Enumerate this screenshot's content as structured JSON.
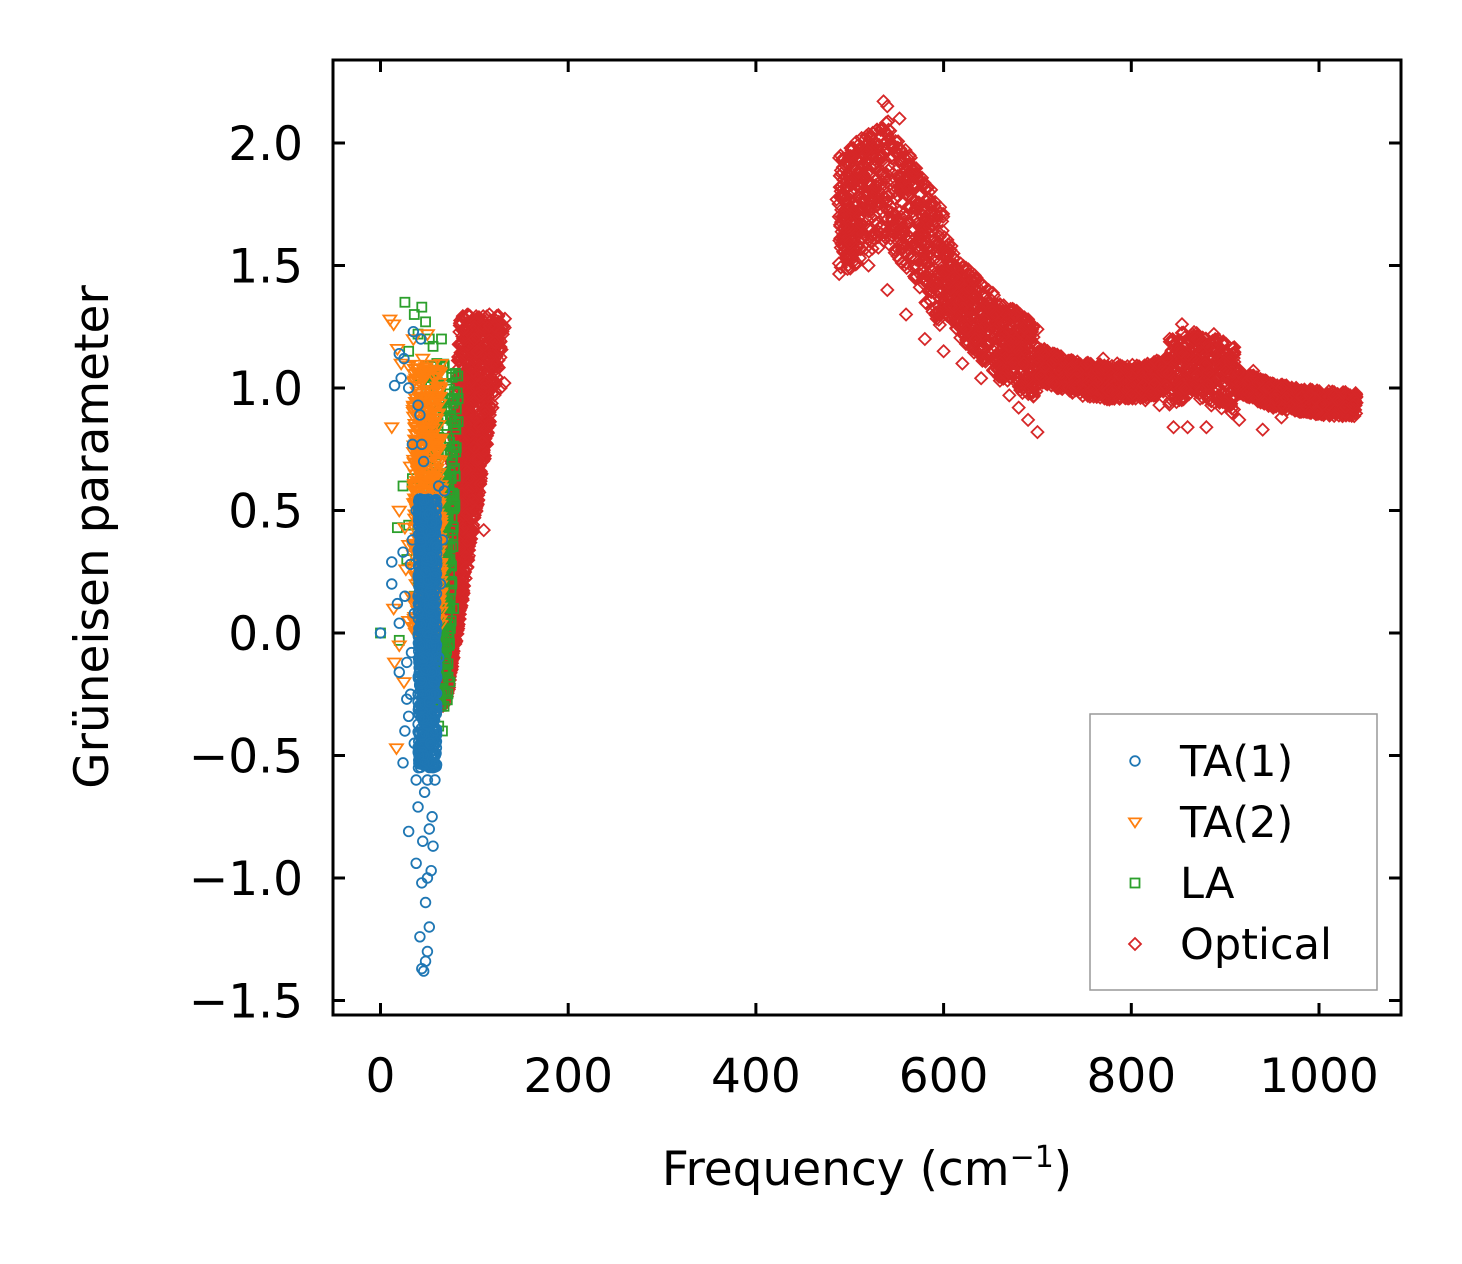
{
  "chart_data": {
    "type": "scatter",
    "title": "",
    "xlabel": "Frequency (cm",
    "xlabel_sup": "−1",
    "xlabel_suffix": ")",
    "ylabel": "Grüneisen parameter",
    "xlim": [
      -50,
      1090
    ],
    "ylim": [
      -1.55,
      2.35
    ],
    "xticks": [
      0,
      200,
      400,
      600,
      800,
      1000
    ],
    "xtick_labels": [
      "0",
      "200",
      "400",
      "600",
      "800",
      "1000"
    ],
    "yticks": [
      -1.5,
      -1.0,
      -0.5,
      0.0,
      0.5,
      1.0,
      1.5,
      2.0
    ],
    "ytick_labels": [
      "−1.5",
      "−1.0",
      "−0.5",
      "0.0",
      "0.5",
      "1.0",
      "1.5",
      "2.0"
    ],
    "grid": false,
    "legend_position": "lower-right",
    "series": [
      {
        "name": "TA(1)",
        "marker": "circle",
        "color": "#1f77b4",
        "points": [
          [
            0,
            0.0
          ],
          [
            12,
            0.29
          ],
          [
            12,
            0.2
          ],
          [
            15,
            1.01
          ],
          [
            18,
            0.12
          ],
          [
            20,
            1.14
          ],
          [
            22,
            1.04
          ],
          [
            24,
            0.33
          ],
          [
            26,
            0.15
          ],
          [
            28,
            -0.12
          ],
          [
            20,
            -0.16
          ],
          [
            30,
            -0.34
          ],
          [
            32,
            -0.25
          ],
          [
            26,
            -0.4
          ],
          [
            30,
            1.0
          ],
          [
            32,
            0.28
          ],
          [
            34,
            0.38
          ],
          [
            36,
            -0.45
          ],
          [
            38,
            -0.6
          ],
          [
            30,
            -0.81
          ],
          [
            38,
            -0.94
          ],
          [
            40,
            -0.71
          ],
          [
            42,
            -1.24
          ],
          [
            44,
            -1.37
          ],
          [
            46,
            -1.38
          ],
          [
            48,
            -1.34
          ],
          [
            50,
            -1.3
          ],
          [
            52,
            -1.2
          ],
          [
            48,
            -1.1
          ],
          [
            50,
            -1.0
          ],
          [
            54,
            -0.97
          ],
          [
            56,
            -0.87
          ],
          [
            52,
            -0.8
          ],
          [
            55,
            -0.75
          ],
          [
            58,
            -0.6
          ],
          [
            56,
            -0.5
          ],
          [
            60,
            -0.3
          ],
          [
            62,
            -0.1
          ],
          [
            58,
            0.05
          ],
          [
            64,
            0.2
          ],
          [
            66,
            0.38
          ],
          [
            60,
            0.52
          ],
          [
            62,
            0.6
          ],
          [
            68,
            0.58
          ],
          [
            40,
            0.93
          ],
          [
            42,
            0.89
          ],
          [
            44,
            0.77
          ],
          [
            46,
            0.7
          ],
          [
            34,
            0.77
          ],
          [
            38,
            0.5
          ],
          [
            40,
            0.15
          ],
          [
            42,
            -0.05
          ],
          [
            44,
            -0.2
          ],
          [
            46,
            -0.35
          ],
          [
            48,
            -0.15
          ],
          [
            50,
            0.0
          ],
          [
            52,
            0.1
          ],
          [
            54,
            -0.05
          ],
          [
            56,
            0.12
          ],
          [
            50,
            -0.6
          ],
          [
            45,
            -0.85
          ],
          [
            44,
            -1.02
          ],
          [
            47,
            -0.65
          ],
          [
            53,
            -0.45
          ],
          [
            57,
            -0.25
          ],
          [
            60,
            0.35
          ],
          [
            48,
            0.25
          ],
          [
            36,
            0.08
          ],
          [
            41,
            -0.5
          ],
          [
            55,
            0.45
          ],
          [
            35,
            1.23
          ],
          [
            43,
            1.2
          ],
          [
            25,
            1.12
          ],
          [
            20,
            0.04
          ],
          [
            28,
            -0.27
          ],
          [
            24,
            -0.53
          ],
          [
            33,
            -0.08
          ],
          [
            46,
            -0.1
          ],
          [
            52,
            -0.28
          ],
          [
            58,
            -0.02
          ]
        ]
      },
      {
        "name": "TA(2)",
        "marker": "triangle-down",
        "color": "#ff7f0e",
        "points": [
          [
            10,
            1.28
          ],
          [
            14,
            1.26
          ],
          [
            18,
            1.16
          ],
          [
            22,
            1.1
          ],
          [
            12,
            0.84
          ],
          [
            20,
            0.5
          ],
          [
            26,
            0.43
          ],
          [
            30,
            0.36
          ],
          [
            14,
            0.1
          ],
          [
            20,
            -0.05
          ],
          [
            15,
            -0.12
          ],
          [
            25,
            -0.2
          ],
          [
            17,
            -0.47
          ],
          [
            30,
            0.05
          ],
          [
            34,
            0.27
          ],
          [
            36,
            0.58
          ],
          [
            32,
            0.68
          ],
          [
            38,
            0.77
          ],
          [
            40,
            0.83
          ],
          [
            42,
            0.94
          ],
          [
            44,
            1.03
          ],
          [
            46,
            0.8
          ],
          [
            48,
            0.9
          ],
          [
            50,
            0.98
          ],
          [
            52,
            0.55
          ],
          [
            54,
            0.48
          ],
          [
            56,
            0.4
          ],
          [
            58,
            0.3
          ],
          [
            40,
            0.12
          ],
          [
            44,
            -0.04
          ],
          [
            46,
            -0.15
          ],
          [
            48,
            -0.3
          ],
          [
            52,
            0.23
          ],
          [
            55,
            0.6
          ],
          [
            60,
            0.7
          ],
          [
            62,
            0.52
          ],
          [
            64,
            0.45
          ],
          [
            30,
            1.09
          ],
          [
            35,
            1.2
          ],
          [
            45,
            1.12
          ],
          [
            50,
            1.22
          ],
          [
            38,
            0.2
          ],
          [
            42,
            0.35
          ],
          [
            33,
            0.15
          ],
          [
            27,
            0.26
          ],
          [
            57,
            0.15
          ],
          [
            61,
            0.36
          ],
          [
            49,
            -0.38
          ]
        ]
      },
      {
        "name": "LA",
        "marker": "square",
        "color": "#2ca02c",
        "points": [
          [
            0,
            0.0
          ],
          [
            20,
            -0.03
          ],
          [
            18,
            0.43
          ],
          [
            24,
            0.6
          ],
          [
            26,
            1.35
          ],
          [
            30,
            1.15
          ],
          [
            36,
            1.3
          ],
          [
            40,
            1.22
          ],
          [
            44,
            1.33
          ],
          [
            48,
            1.27
          ],
          [
            52,
            1.2
          ],
          [
            56,
            1.17
          ],
          [
            60,
            1.1
          ],
          [
            64,
            0.98
          ],
          [
            60,
            0.78
          ],
          [
            66,
            0.65
          ],
          [
            68,
            0.55
          ],
          [
            70,
            0.48
          ],
          [
            72,
            0.4
          ],
          [
            74,
            0.3
          ],
          [
            76,
            0.2
          ],
          [
            78,
            0.1
          ],
          [
            72,
            -0.18
          ],
          [
            74,
            -0.2
          ],
          [
            70,
            -0.05
          ],
          [
            66,
            -0.08
          ],
          [
            62,
            0.0
          ],
          [
            58,
            0.2
          ],
          [
            54,
            0.5
          ],
          [
            50,
            0.8
          ],
          [
            46,
            0.95
          ],
          [
            42,
            1.05
          ],
          [
            38,
            0.75
          ],
          [
            34,
            0.63
          ],
          [
            30,
            0.44
          ],
          [
            28,
            0.3
          ],
          [
            36,
            0.15
          ],
          [
            40,
            0.22
          ],
          [
            44,
            0.4
          ],
          [
            48,
            0.05
          ],
          [
            56,
            -0.25
          ],
          [
            62,
            -0.38
          ],
          [
            66,
            -0.4
          ],
          [
            68,
            0.32
          ],
          [
            71,
            0.73
          ],
          [
            65,
            1.2
          ],
          [
            58,
            1.05
          ]
        ]
      },
      {
        "name": "Optical",
        "marker": "diamond",
        "color": "#d62728",
        "regions": [
          {
            "x": [
              55,
              140
            ],
            "y": [
              -0.3,
              1.3
            ],
            "count": 1800
          },
          {
            "x": [
              488,
              1040
            ],
            "y": [
              0.82,
              2.18
            ],
            "count": 3200
          }
        ],
        "outline_points": [
          [
            116,
            1.3
          ],
          [
            122,
            1.25
          ],
          [
            100,
            1.2
          ],
          [
            88,
            1.24
          ],
          [
            132,
            1.02
          ],
          [
            128,
            1.0
          ],
          [
            110,
            0.42
          ],
          [
            102,
            0.5
          ],
          [
            66,
            0.2
          ],
          [
            62,
            -0.2
          ],
          [
            60,
            -0.3
          ],
          [
            536,
            2.17
          ],
          [
            540,
            2.15
          ],
          [
            553,
            2.1
          ],
          [
            545,
            1.98
          ],
          [
            565,
            1.94
          ],
          [
            574,
            1.85
          ],
          [
            588,
            1.72
          ],
          [
            588,
            1.67
          ],
          [
            604,
            1.55
          ],
          [
            610,
            1.45
          ],
          [
            622,
            1.38
          ],
          [
            633,
            1.37
          ],
          [
            650,
            1.32
          ],
          [
            667,
            1.3
          ],
          [
            690,
            1.28
          ],
          [
            700,
            1.24
          ],
          [
            720,
            1.12
          ],
          [
            735,
            1.08
          ],
          [
            752,
            1.1
          ],
          [
            770,
            1.12
          ],
          [
            785,
            1.1
          ],
          [
            800,
            1.05
          ],
          [
            818,
            1.09
          ],
          [
            838,
            1.12
          ],
          [
            854,
            1.26
          ],
          [
            870,
            1.2
          ],
          [
            888,
            1.22
          ],
          [
            898,
            1.19
          ],
          [
            908,
            1.16
          ],
          [
            930,
            1.07
          ],
          [
            960,
            1.0
          ],
          [
            990,
            0.97
          ],
          [
            1020,
            0.95
          ],
          [
            1040,
            0.94
          ],
          [
            1036,
            0.93
          ],
          [
            990,
            0.9
          ],
          [
            960,
            0.88
          ],
          [
            940,
            0.83
          ],
          [
            915,
            0.87
          ],
          [
            880,
            0.84
          ],
          [
            860,
            0.84
          ],
          [
            845,
            0.84
          ],
          [
            830,
            0.93
          ],
          [
            815,
            0.95
          ],
          [
            800,
            0.97
          ],
          [
            780,
            0.99
          ],
          [
            760,
            1.0
          ],
          [
            740,
            1.0
          ],
          [
            720,
            1.02
          ],
          [
            700,
            0.82
          ],
          [
            690,
            0.87
          ],
          [
            680,
            0.92
          ],
          [
            670,
            0.97
          ],
          [
            660,
            1.03
          ],
          [
            640,
            1.04
          ],
          [
            620,
            1.1
          ],
          [
            600,
            1.15
          ],
          [
            580,
            1.2
          ],
          [
            560,
            1.3
          ],
          [
            540,
            1.4
          ],
          [
            520,
            1.5
          ],
          [
            505,
            1.55
          ],
          [
            490,
            1.66
          ],
          [
            486,
            1.77
          ],
          [
            492,
            1.78
          ],
          [
            510,
            1.7
          ],
          [
            520,
            1.72
          ],
          [
            530,
            1.76
          ],
          [
            536,
            1.78
          ]
        ]
      }
    ]
  }
}
